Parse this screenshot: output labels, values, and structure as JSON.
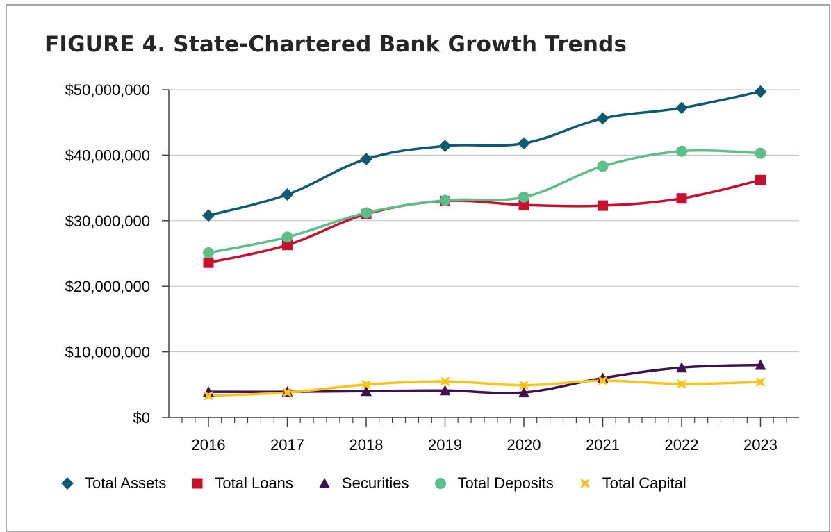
{
  "chart_data": {
    "type": "line",
    "title": "FIGURE 4. State-Chartered Bank Growth Trends",
    "categories": [
      "2016",
      "2017",
      "2018",
      "2019",
      "2020",
      "2021",
      "2022",
      "2023"
    ],
    "ylim": [
      0,
      50000000
    ],
    "yticks": [
      "$0",
      "$10,000,000",
      "$20,000,000",
      "$30,000,000",
      "$40,000,000",
      "$50,000,000"
    ],
    "grid": true,
    "legend_position": "bottom",
    "series": [
      {
        "name": "Total Assets",
        "color": "#0f5a73",
        "marker": "diamond",
        "values": [
          30800000,
          34000000,
          39400000,
          41400000,
          41800000,
          45600000,
          47200000,
          49700000
        ]
      },
      {
        "name": "Total Loans",
        "color": "#c8102e",
        "marker": "square",
        "values": [
          23600000,
          26300000,
          31000000,
          33000000,
          32400000,
          32300000,
          33400000,
          36200000
        ]
      },
      {
        "name": "Securities",
        "color": "#3d1152",
        "marker": "triangle",
        "values": [
          3900000,
          3900000,
          4000000,
          4100000,
          3800000,
          6000000,
          7600000,
          8000000
        ]
      },
      {
        "name": "Total Deposits",
        "color": "#5cbf88",
        "marker": "circle",
        "values": [
          25100000,
          27500000,
          31200000,
          33100000,
          33600000,
          38300000,
          40600000,
          40300000
        ]
      },
      {
        "name": "Total Capital",
        "color": "#fcc419",
        "marker": "star",
        "values": [
          3300000,
          3800000,
          5000000,
          5500000,
          4900000,
          5600000,
          5100000,
          5400000
        ]
      }
    ]
  }
}
